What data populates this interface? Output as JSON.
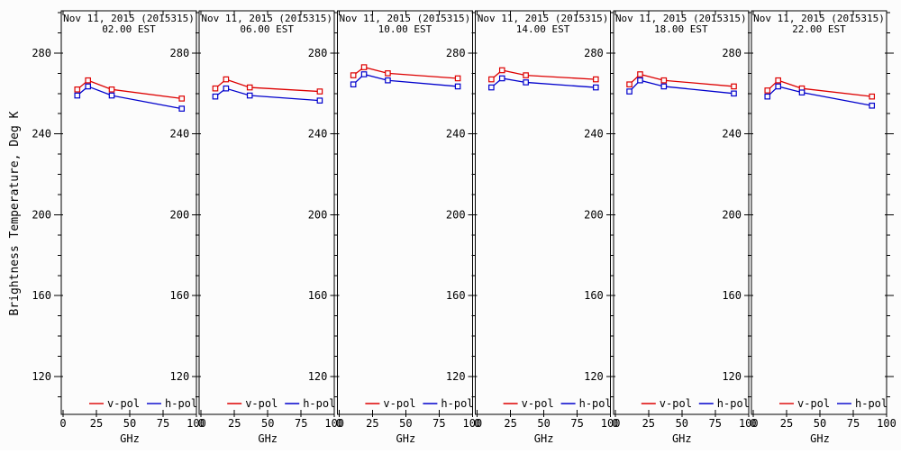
{
  "figure": {
    "ylabel": "Brightness Temperature, Deg K",
    "xlabel": "GHz",
    "background": "#fcfcfc",
    "axis_color": "#000000",
    "text_color": "#000000"
  },
  "legend": {
    "position": "bottom-inside-each-panel",
    "items": [
      {
        "label": "v-pol",
        "color": "#dd0000"
      },
      {
        "label": "h-pol",
        "color": "#0000cc"
      }
    ]
  },
  "chart_data": [
    {
      "type": "line",
      "title": "Nov 11, 2015 (2015315)",
      "subtitle": "02.00 EST",
      "xlabel": "GHz",
      "x": [
        10.65,
        18.7,
        36.5,
        89
      ],
      "series": [
        {
          "name": "v-pol",
          "color": "#dd0000",
          "values": [
            262.0,
            266.5,
            262.0,
            257.5
          ]
        },
        {
          "name": "h-pol",
          "color": "#0000cc",
          "values": [
            259.0,
            263.5,
            259.0,
            252.5
          ]
        }
      ],
      "xlim": [
        0,
        100
      ],
      "xticks": [
        0,
        25,
        50,
        75,
        100
      ],
      "ylim": [
        100,
        300
      ],
      "yticks": [
        120,
        160,
        200,
        240,
        280
      ],
      "yminor_step": 10,
      "grid": false
    },
    {
      "type": "line",
      "title": "Nov 11, 2015 (2015315)",
      "subtitle": "06.00 EST",
      "xlabel": "GHz",
      "x": [
        10.65,
        18.7,
        36.5,
        89
      ],
      "series": [
        {
          "name": "v-pol",
          "color": "#dd0000",
          "values": [
            262.5,
            267.0,
            263.0,
            261.0
          ]
        },
        {
          "name": "h-pol",
          "color": "#0000cc",
          "values": [
            258.5,
            262.5,
            259.0,
            256.5
          ]
        }
      ],
      "xlim": [
        0,
        100
      ],
      "xticks": [
        0,
        25,
        50,
        75,
        100
      ],
      "ylim": [
        100,
        300
      ],
      "yticks": [
        120,
        160,
        200,
        240,
        280
      ],
      "yminor_step": 10,
      "grid": false
    },
    {
      "type": "line",
      "title": "Nov 11, 2015 (2015315)",
      "subtitle": "10.00 EST",
      "xlabel": "GHz",
      "x": [
        10.65,
        18.7,
        36.5,
        89
      ],
      "series": [
        {
          "name": "v-pol",
          "color": "#dd0000",
          "values": [
            269.0,
            273.0,
            270.0,
            267.5
          ]
        },
        {
          "name": "h-pol",
          "color": "#0000cc",
          "values": [
            264.5,
            269.5,
            266.5,
            263.5
          ]
        }
      ],
      "xlim": [
        0,
        100
      ],
      "xticks": [
        0,
        25,
        50,
        75,
        100
      ],
      "ylim": [
        100,
        300
      ],
      "yticks": [
        120,
        160,
        200,
        240,
        280
      ],
      "yminor_step": 10,
      "grid": false
    },
    {
      "type": "line",
      "title": "Nov 11, 2015 (2015315)",
      "subtitle": "14.00 EST",
      "xlabel": "GHz",
      "x": [
        10.65,
        18.7,
        36.5,
        89
      ],
      "series": [
        {
          "name": "v-pol",
          "color": "#dd0000",
          "values": [
            267.0,
            271.5,
            269.0,
            267.0
          ]
        },
        {
          "name": "h-pol",
          "color": "#0000cc",
          "values": [
            263.0,
            267.5,
            265.5,
            263.0
          ]
        }
      ],
      "xlim": [
        0,
        100
      ],
      "xticks": [
        0,
        25,
        50,
        75,
        100
      ],
      "ylim": [
        100,
        300
      ],
      "yticks": [
        120,
        160,
        200,
        240,
        280
      ],
      "yminor_step": 10,
      "grid": false
    },
    {
      "type": "line",
      "title": "Nov 11, 2015 (2015315)",
      "subtitle": "18.00 EST",
      "xlabel": "GHz",
      "x": [
        10.65,
        18.7,
        36.5,
        89
      ],
      "series": [
        {
          "name": "v-pol",
          "color": "#dd0000",
          "values": [
            264.5,
            269.5,
            266.5,
            263.5
          ]
        },
        {
          "name": "h-pol",
          "color": "#0000cc",
          "values": [
            261.0,
            266.5,
            263.5,
            260.0
          ]
        }
      ],
      "xlim": [
        0,
        100
      ],
      "xticks": [
        0,
        25,
        50,
        75,
        100
      ],
      "ylim": [
        100,
        300
      ],
      "yticks": [
        120,
        160,
        200,
        240,
        280
      ],
      "yminor_step": 10,
      "grid": false
    },
    {
      "type": "line",
      "title": "Nov 11, 2015 (2015315)",
      "subtitle": "22.00 EST",
      "xlabel": "GHz",
      "x": [
        10.65,
        18.7,
        36.5,
        89
      ],
      "series": [
        {
          "name": "v-pol",
          "color": "#dd0000",
          "values": [
            261.5,
            266.5,
            262.5,
            258.5
          ]
        },
        {
          "name": "h-pol",
          "color": "#0000cc",
          "values": [
            258.5,
            263.5,
            260.5,
            254.0
          ]
        }
      ],
      "xlim": [
        0,
        100
      ],
      "xticks": [
        0,
        25,
        50,
        75,
        100
      ],
      "ylim": [
        100,
        300
      ],
      "yticks": [
        120,
        160,
        200,
        240,
        280
      ],
      "yminor_step": 10,
      "grid": false
    }
  ]
}
